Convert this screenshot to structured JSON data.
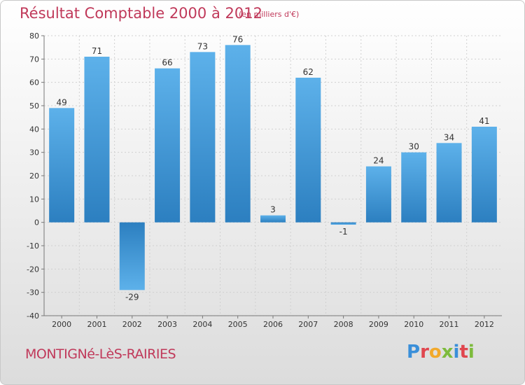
{
  "header": {
    "title": "Résultat Comptable 2000 à 2012",
    "unit": "(en milliers d'€)"
  },
  "footer": {
    "commune": "MONTIGNé-LèS-RAIRIES",
    "brand": {
      "text": "Proxiti",
      "letter_colors": [
        "#3a8fd9",
        "#e0464e",
        "#f2a92b",
        "#7dbb3c",
        "#3a8fd9",
        "#e0464e",
        "#7dbb3c"
      ]
    }
  },
  "colors": {
    "accent": "#c0395a",
    "bar_top": "#5db1ea",
    "bar_bottom": "#2c7fc0",
    "grid": "#d0d0d0"
  },
  "chart_data": {
    "type": "bar",
    "title": "Résultat Comptable 2000 à 2012",
    "categories": [
      "2000",
      "2001",
      "2002",
      "2003",
      "2004",
      "2005",
      "2006",
      "2007",
      "2008",
      "2009",
      "2010",
      "2011",
      "2012"
    ],
    "values": [
      49,
      71,
      -29,
      66,
      73,
      76,
      3,
      62,
      -1,
      24,
      30,
      34,
      41
    ],
    "ylim": [
      -40,
      80
    ],
    "yticks": [
      -40,
      -30,
      -20,
      -10,
      0,
      10,
      20,
      30,
      40,
      50,
      60,
      70,
      80
    ],
    "grid": true,
    "xlabel": "",
    "ylabel": ""
  }
}
